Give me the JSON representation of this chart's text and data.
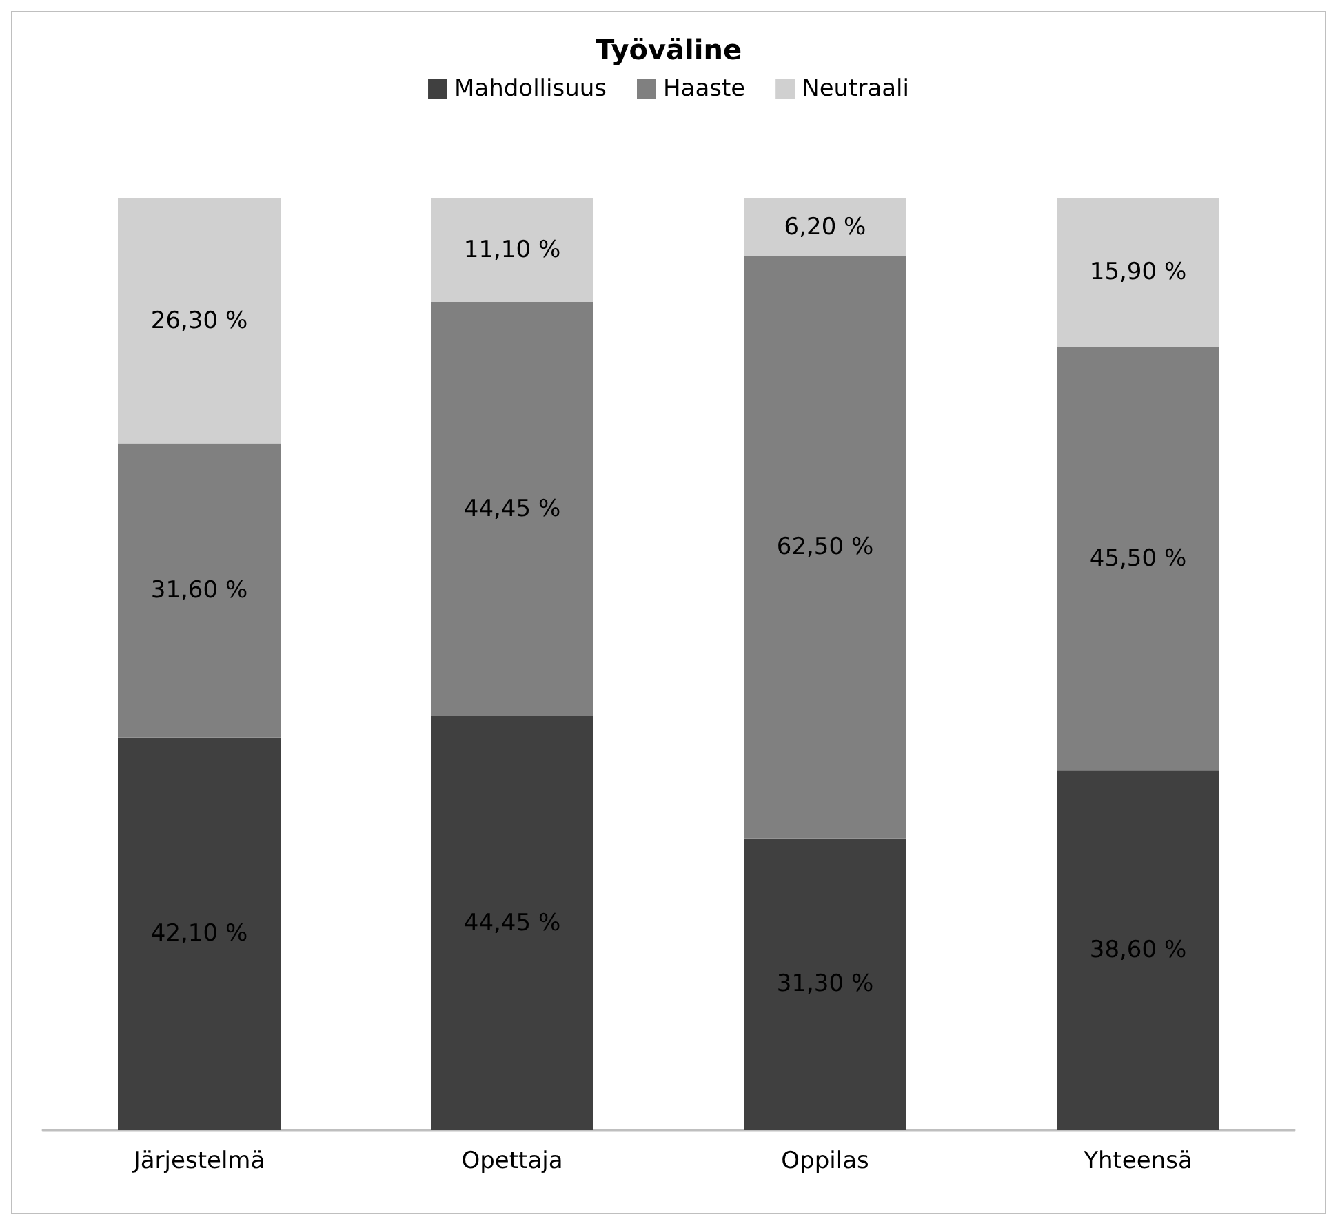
{
  "chart_data": {
    "type": "bar",
    "title": "Työväline",
    "stacked": true,
    "legend": "top",
    "categories": [
      "Järjestelmä",
      "Opettaja",
      "Oppilas",
      "Yhteensä"
    ],
    "series": [
      {
        "name": "Mahdollisuus",
        "color": "#404040",
        "values": [
          42.1,
          44.45,
          31.3,
          38.6
        ],
        "value_labels": [
          "42,10 %",
          "44,45 %",
          "31,30 %",
          "38,60 %"
        ]
      },
      {
        "name": "Haaste",
        "color": "#808080",
        "values": [
          31.6,
          44.45,
          62.5,
          45.5
        ],
        "value_labels": [
          "31,60 %",
          "44,45 %",
          "62,50 %",
          "45,50 %"
        ]
      },
      {
        "name": "Neutraali",
        "color": "#d0d0d0",
        "values": [
          26.3,
          11.1,
          6.2,
          15.9
        ],
        "value_labels": [
          "26,30 %",
          "11,10 %",
          "6,20 %",
          "15,90 %"
        ]
      }
    ]
  }
}
